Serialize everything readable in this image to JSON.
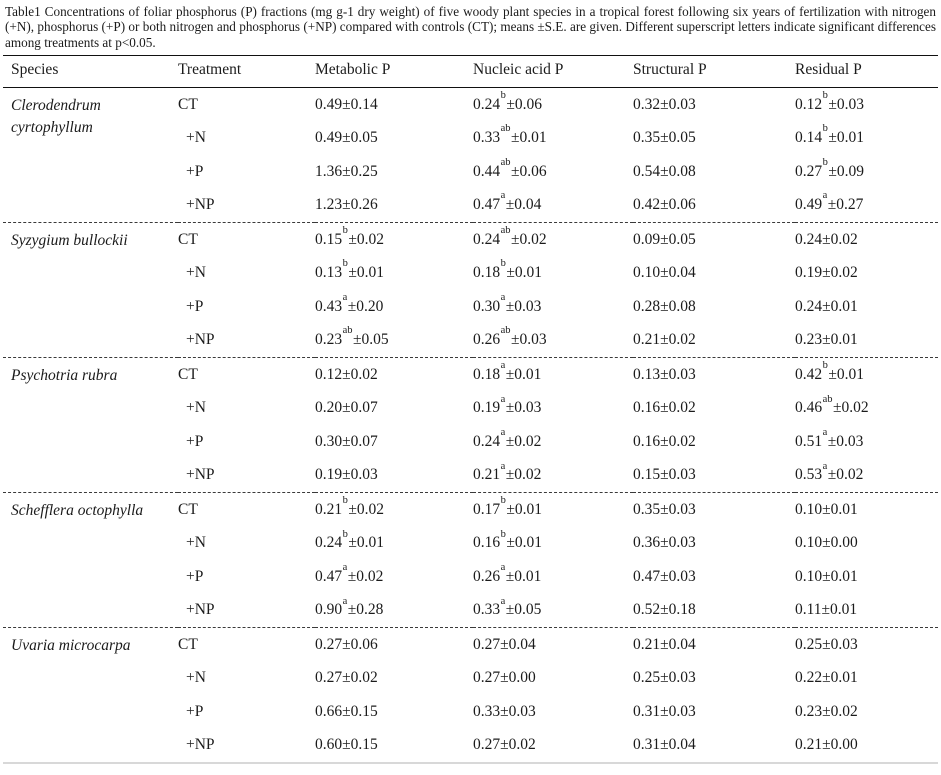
{
  "caption": "Table1 Concentrations of foliar phosphorus (P) fractions (mg g-1 dry weight) of five woody plant species in a tropical forest following six years of fertilization with nitrogen (+N), phosphorus (+P) or both nitrogen and phosphorus (+NP) compared with controls (CT); means ±S.E. are given. Different superscript letters indicate significant differences among treatments at p<0.05.",
  "table": {
    "columns": [
      "Species",
      "Treatment",
      "Metabolic P",
      "Nucleic acid P",
      "Structural P",
      "Residual P"
    ],
    "groups": [
      {
        "species": "Clerodendrum cyrtophyllum",
        "rows": [
          {
            "treatment": "CT",
            "metabolic": "0.49±0.14",
            "nucleic": "0.24^b^±0.06",
            "structural": "0.32±0.03",
            "residual": "0.12^b^±0.03"
          },
          {
            "treatment": "+N",
            "metabolic": "0.49±0.05",
            "nucleic": "0.33^ab^±0.01",
            "structural": "0.35±0.05",
            "residual": "0.14^b^±0.01"
          },
          {
            "treatment": "+P",
            "metabolic": "1.36±0.25",
            "nucleic": "0.44^ab^±0.06",
            "structural": "0.54±0.08",
            "residual": "0.27^b^±0.09"
          },
          {
            "treatment": "+NP",
            "metabolic": "1.23±0.26",
            "nucleic": "0.47^a^±0.04",
            "structural": "0.42±0.06",
            "residual": "0.49^a^±0.27"
          }
        ]
      },
      {
        "species": "Syzygium bullockii",
        "rows": [
          {
            "treatment": "CT",
            "metabolic": "0.15^b^±0.02",
            "nucleic": "0.24^ab^±0.02",
            "structural": "0.09±0.05",
            "residual": "0.24±0.02"
          },
          {
            "treatment": "+N",
            "metabolic": "0.13^b^±0.01",
            "nucleic": "0.18^b^±0.01",
            "structural": "0.10±0.04",
            "residual": "0.19±0.02"
          },
          {
            "treatment": "+P",
            "metabolic": "0.43^a^±0.20",
            "nucleic": "0.30^a^±0.03",
            "structural": "0.28±0.08",
            "residual": "0.24±0.01"
          },
          {
            "treatment": "+NP",
            "metabolic": "0.23^ab^±0.05",
            "nucleic": "0.26^ab^±0.03",
            "structural": "0.21±0.02",
            "residual": "0.23±0.01"
          }
        ]
      },
      {
        "species": "Psychotria rubra",
        "rows": [
          {
            "treatment": "CT",
            "metabolic": "0.12±0.02",
            "nucleic": "0.18^a^±0.01",
            "structural": "0.13±0.03",
            "residual": "0.42^b^±0.01"
          },
          {
            "treatment": "+N",
            "metabolic": "0.20±0.07",
            "nucleic": "0.19^a^±0.03",
            "structural": "0.16±0.02",
            "residual": "0.46^ab^±0.02"
          },
          {
            "treatment": "+P",
            "metabolic": "0.30±0.07",
            "nucleic": "0.24^a^±0.02",
            "structural": "0.16±0.02",
            "residual": "0.51^a^±0.03"
          },
          {
            "treatment": "+NP",
            "metabolic": "0.19±0.03",
            "nucleic": "0.21^a^±0.02",
            "structural": "0.15±0.03",
            "residual": "0.53^a^±0.02"
          }
        ]
      },
      {
        "species": "Schefflera octophylla",
        "rows": [
          {
            "treatment": "CT",
            "metabolic": "0.21^b^±0.02",
            "nucleic": "0.17^b^±0.01",
            "structural": "0.35±0.03",
            "residual": "0.10±0.01"
          },
          {
            "treatment": "+N",
            "metabolic": "0.24^b^±0.01",
            "nucleic": "0.16^b^±0.01",
            "structural": "0.36±0.03",
            "residual": "0.10±0.00"
          },
          {
            "treatment": "+P",
            "metabolic": "0.47^a^±0.02",
            "nucleic": "0.26^a^±0.01",
            "structural": "0.47±0.03",
            "residual": "0.10±0.01"
          },
          {
            "treatment": "+NP",
            "metabolic": "0.90^a^±0.28",
            "nucleic": "0.33^a^±0.05",
            "structural": "0.52±0.18",
            "residual": "0.11±0.01"
          }
        ]
      },
      {
        "species": "Uvaria microcarpa",
        "rows": [
          {
            "treatment": "CT",
            "metabolic": "0.27±0.06",
            "nucleic": "0.27±0.04",
            "structural": "0.21±0.04",
            "residual": "0.25±0.03"
          },
          {
            "treatment": "+N",
            "metabolic": "0.27±0.02",
            "nucleic": "0.27±0.00",
            "structural": "0.25±0.03",
            "residual": "0.22±0.01"
          },
          {
            "treatment": "+P",
            "metabolic": "0.66±0.15",
            "nucleic": "0.33±0.03",
            "structural": "0.31±0.03",
            "residual": "0.23±0.02"
          },
          {
            "treatment": "+NP",
            "metabolic": "0.60±0.15",
            "nucleic": "0.27±0.02",
            "structural": "0.31±0.04",
            "residual": "0.21±0.00"
          }
        ]
      }
    ]
  }
}
